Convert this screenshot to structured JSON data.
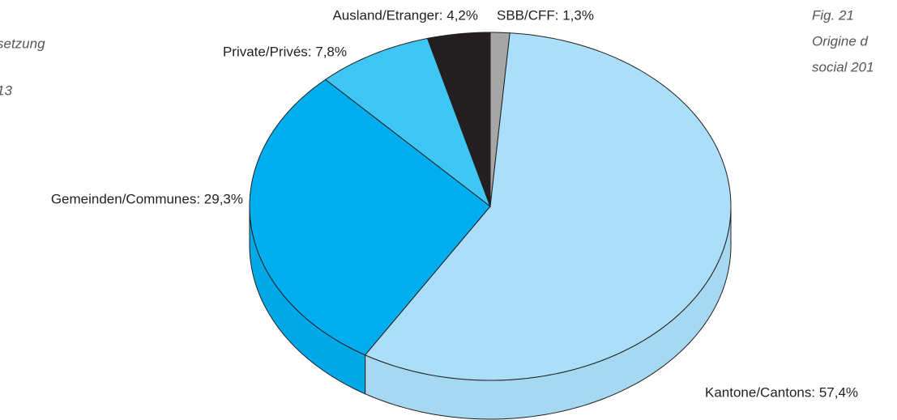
{
  "chart_data": {
    "type": "pie3d",
    "values": [
      1.3,
      57.4,
      29.3,
      7.8,
      4.2
    ],
    "value_labels": [
      "SBB/CFF: 1,3%",
      "Kantone/Cantons: 57,4%",
      "Gemeinden/Communes: 29,3%",
      "Private/Privés: 7,8%",
      "Ausland/Etranger: 4,2%"
    ],
    "colors": [
      "#a6a6a6",
      "#abdff9",
      "#00adee",
      "#3fc6f4",
      "#231f20"
    ],
    "annotations_left": [
      "setzung",
      "13"
    ],
    "annotations_right": [
      "Fig. 21",
      "Origine d",
      "social 201"
    ]
  }
}
